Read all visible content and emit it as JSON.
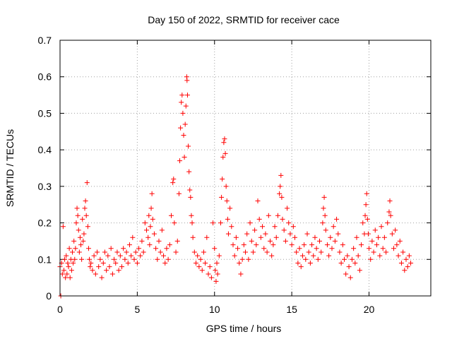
{
  "chart_data": {
    "type": "scatter",
    "title": "Day 150 of 2022, SRMTID for receiver cace",
    "xlabel": "GPS time / hours",
    "ylabel": "SRMTID / TECUs",
    "xlim": [
      0,
      24
    ],
    "ylim": [
      0,
      0.7
    ],
    "xticks": [
      0,
      5,
      10,
      15,
      20
    ],
    "yticks": [
      0,
      0.1,
      0.2,
      0.3,
      0.4,
      0.5,
      0.6,
      0.7
    ],
    "grid": true,
    "marker": "+",
    "series": [
      {
        "name": "SRMTID",
        "color": "#ff0000",
        "points": [
          [
            0.0,
            0.08
          ],
          [
            0.05,
            0.0
          ],
          [
            0.1,
            0.09
          ],
          [
            0.15,
            0.06
          ],
          [
            0.2,
            0.19
          ],
          [
            0.25,
            0.07
          ],
          [
            0.3,
            0.1
          ],
          [
            0.35,
            0.05
          ],
          [
            0.4,
            0.11
          ],
          [
            0.45,
            0.06
          ],
          [
            0.5,
            0.09
          ],
          [
            0.55,
            0.08
          ],
          [
            0.6,
            0.13
          ],
          [
            0.65,
            0.05
          ],
          [
            0.7,
            0.1
          ],
          [
            0.75,
            0.07
          ],
          [
            0.8,
            0.12
          ],
          [
            0.85,
            0.09
          ],
          [
            0.9,
            0.15
          ],
          [
            0.95,
            0.1
          ],
          [
            1.0,
            0.13
          ],
          [
            1.05,
            0.2
          ],
          [
            1.1,
            0.24
          ],
          [
            1.15,
            0.22
          ],
          [
            1.2,
            0.18
          ],
          [
            1.25,
            0.12
          ],
          [
            1.3,
            0.16
          ],
          [
            1.35,
            0.14
          ],
          [
            1.4,
            0.1
          ],
          [
            1.45,
            0.21
          ],
          [
            1.5,
            0.15
          ],
          [
            1.55,
            0.17
          ],
          [
            1.6,
            0.24
          ],
          [
            1.65,
            0.26
          ],
          [
            1.7,
            0.22
          ],
          [
            1.75,
            0.31
          ],
          [
            1.8,
            0.19
          ],
          [
            1.85,
            0.13
          ],
          [
            1.9,
            0.1
          ],
          [
            1.95,
            0.08
          ],
          [
            2.0,
            0.09
          ],
          [
            2.1,
            0.07
          ],
          [
            2.2,
            0.11
          ],
          [
            2.3,
            0.06
          ],
          [
            2.4,
            0.12
          ],
          [
            2.5,
            0.08
          ],
          [
            2.6,
            0.1
          ],
          [
            2.7,
            0.05
          ],
          [
            2.8,
            0.09
          ],
          [
            2.9,
            0.12
          ],
          [
            3.0,
            0.07
          ],
          [
            3.1,
            0.11
          ],
          [
            3.2,
            0.08
          ],
          [
            3.3,
            0.13
          ],
          [
            3.4,
            0.06
          ],
          [
            3.5,
            0.1
          ],
          [
            3.6,
            0.09
          ],
          [
            3.7,
            0.12
          ],
          [
            3.8,
            0.07
          ],
          [
            3.9,
            0.11
          ],
          [
            4.0,
            0.08
          ],
          [
            4.1,
            0.13
          ],
          [
            4.2,
            0.1
          ],
          [
            4.3,
            0.12
          ],
          [
            4.4,
            0.09
          ],
          [
            4.5,
            0.14
          ],
          [
            4.6,
            0.11
          ],
          [
            4.7,
            0.16
          ],
          [
            4.8,
            0.1
          ],
          [
            4.9,
            0.12
          ],
          [
            5.0,
            0.09
          ],
          [
            5.1,
            0.13
          ],
          [
            5.2,
            0.11
          ],
          [
            5.3,
            0.15
          ],
          [
            5.4,
            0.12
          ],
          [
            5.5,
            0.2
          ],
          [
            5.6,
            0.18
          ],
          [
            5.7,
            0.16
          ],
          [
            5.75,
            0.22
          ],
          [
            5.8,
            0.14
          ],
          [
            5.85,
            0.19
          ],
          [
            5.9,
            0.24
          ],
          [
            5.95,
            0.28
          ],
          [
            6.0,
            0.21
          ],
          [
            6.1,
            0.17
          ],
          [
            6.2,
            0.13
          ],
          [
            6.3,
            0.1
          ],
          [
            6.4,
            0.15
          ],
          [
            6.5,
            0.12
          ],
          [
            6.6,
            0.18
          ],
          [
            6.7,
            0.11
          ],
          [
            6.8,
            0.09
          ],
          [
            6.9,
            0.13
          ],
          [
            7.0,
            0.1
          ],
          [
            7.1,
            0.14
          ],
          [
            7.2,
            0.22
          ],
          [
            7.3,
            0.31
          ],
          [
            7.35,
            0.32
          ],
          [
            7.4,
            0.2
          ],
          [
            7.5,
            0.12
          ],
          [
            7.6,
            0.15
          ],
          [
            7.7,
            0.28
          ],
          [
            7.75,
            0.37
          ],
          [
            7.8,
            0.46
          ],
          [
            7.85,
            0.53
          ],
          [
            7.9,
            0.55
          ],
          [
            7.95,
            0.5
          ],
          [
            8.0,
            0.44
          ],
          [
            8.05,
            0.38
          ],
          [
            8.1,
            0.47
          ],
          [
            8.15,
            0.52
          ],
          [
            8.2,
            0.6
          ],
          [
            8.22,
            0.59
          ],
          [
            8.25,
            0.55
          ],
          [
            8.3,
            0.41
          ],
          [
            8.35,
            0.34
          ],
          [
            8.4,
            0.29
          ],
          [
            8.45,
            0.27
          ],
          [
            8.5,
            0.22
          ],
          [
            8.55,
            0.2
          ],
          [
            8.6,
            0.16
          ],
          [
            8.7,
            0.12
          ],
          [
            8.8,
            0.09
          ],
          [
            8.9,
            0.11
          ],
          [
            9.0,
            0.08
          ],
          [
            9.1,
            0.1
          ],
          [
            9.2,
            0.07
          ],
          [
            9.3,
            0.12
          ],
          [
            9.4,
            0.09
          ],
          [
            9.5,
            0.16
          ],
          [
            9.6,
            0.06
          ],
          [
            9.7,
            0.08
          ],
          [
            9.8,
            0.05
          ],
          [
            9.9,
            0.2
          ],
          [
            10.0,
            0.13
          ],
          [
            10.05,
            0.07
          ],
          [
            10.1,
            0.04
          ],
          [
            10.15,
            0.09
          ],
          [
            10.2,
            0.06
          ],
          [
            10.3,
            0.11
          ],
          [
            10.4,
            0.2
          ],
          [
            10.45,
            0.27
          ],
          [
            10.5,
            0.32
          ],
          [
            10.55,
            0.38
          ],
          [
            10.6,
            0.42
          ],
          [
            10.65,
            0.43
          ],
          [
            10.7,
            0.39
          ],
          [
            10.75,
            0.3
          ],
          [
            10.8,
            0.26
          ],
          [
            10.85,
            0.21
          ],
          [
            10.9,
            0.17
          ],
          [
            11.0,
            0.24
          ],
          [
            11.1,
            0.19
          ],
          [
            11.2,
            0.14
          ],
          [
            11.3,
            0.11
          ],
          [
            11.4,
            0.16
          ],
          [
            11.5,
            0.13
          ],
          [
            11.6,
            0.09
          ],
          [
            11.7,
            0.06
          ],
          [
            11.8,
            0.1
          ],
          [
            11.9,
            0.14
          ],
          [
            12.0,
            0.12
          ],
          [
            12.1,
            0.17
          ],
          [
            12.2,
            0.1
          ],
          [
            12.3,
            0.2
          ],
          [
            12.4,
            0.15
          ],
          [
            12.5,
            0.12
          ],
          [
            12.6,
            0.18
          ],
          [
            12.7,
            0.14
          ],
          [
            12.8,
            0.26
          ],
          [
            12.9,
            0.21
          ],
          [
            13.0,
            0.16
          ],
          [
            13.1,
            0.19
          ],
          [
            13.2,
            0.13
          ],
          [
            13.3,
            0.17
          ],
          [
            13.4,
            0.12
          ],
          [
            13.5,
            0.22
          ],
          [
            13.6,
            0.15
          ],
          [
            13.7,
            0.11
          ],
          [
            13.8,
            0.14
          ],
          [
            13.9,
            0.19
          ],
          [
            14.0,
            0.16
          ],
          [
            14.1,
            0.22
          ],
          [
            14.2,
            0.28
          ],
          [
            14.25,
            0.3
          ],
          [
            14.3,
            0.33
          ],
          [
            14.35,
            0.27
          ],
          [
            14.4,
            0.21
          ],
          [
            14.5,
            0.18
          ],
          [
            14.6,
            0.15
          ],
          [
            14.7,
            0.24
          ],
          [
            14.8,
            0.2
          ],
          [
            14.9,
            0.17
          ],
          [
            15.0,
            0.14
          ],
          [
            15.1,
            0.19
          ],
          [
            15.2,
            0.16
          ],
          [
            15.3,
            0.12
          ],
          [
            15.4,
            0.09
          ],
          [
            15.5,
            0.13
          ],
          [
            15.6,
            0.08
          ],
          [
            15.7,
            0.11
          ],
          [
            15.8,
            0.14
          ],
          [
            15.9,
            0.1
          ],
          [
            16.0,
            0.17
          ],
          [
            16.1,
            0.12
          ],
          [
            16.2,
            0.09
          ],
          [
            16.3,
            0.14
          ],
          [
            16.4,
            0.11
          ],
          [
            16.5,
            0.16
          ],
          [
            16.6,
            0.13
          ],
          [
            16.7,
            0.1
          ],
          [
            16.8,
            0.15
          ],
          [
            16.9,
            0.12
          ],
          [
            17.0,
            0.2
          ],
          [
            17.05,
            0.24
          ],
          [
            17.1,
            0.27
          ],
          [
            17.15,
            0.22
          ],
          [
            17.2,
            0.18
          ],
          [
            17.3,
            0.14
          ],
          [
            17.4,
            0.11
          ],
          [
            17.5,
            0.16
          ],
          [
            17.6,
            0.13
          ],
          [
            17.7,
            0.19
          ],
          [
            17.8,
            0.15
          ],
          [
            17.9,
            0.21
          ],
          [
            18.0,
            0.17
          ],
          [
            18.1,
            0.12
          ],
          [
            18.2,
            0.09
          ],
          [
            18.3,
            0.14
          ],
          [
            18.4,
            0.1
          ],
          [
            18.5,
            0.06
          ],
          [
            18.6,
            0.11
          ],
          [
            18.7,
            0.08
          ],
          [
            18.8,
            0.05
          ],
          [
            18.9,
            0.1
          ],
          [
            19.0,
            0.13
          ],
          [
            19.1,
            0.09
          ],
          [
            19.2,
            0.16
          ],
          [
            19.3,
            0.11
          ],
          [
            19.4,
            0.07
          ],
          [
            19.5,
            0.14
          ],
          [
            19.6,
            0.2
          ],
          [
            19.7,
            0.17
          ],
          [
            19.75,
            0.22
          ],
          [
            19.8,
            0.25
          ],
          [
            19.85,
            0.28
          ],
          [
            19.9,
            0.21
          ],
          [
            19.95,
            0.17
          ],
          [
            20.0,
            0.13
          ],
          [
            20.1,
            0.1
          ],
          [
            20.2,
            0.15
          ],
          [
            20.3,
            0.12
          ],
          [
            20.4,
            0.18
          ],
          [
            20.5,
            0.14
          ],
          [
            20.6,
            0.16
          ],
          [
            20.7,
            0.11
          ],
          [
            20.8,
            0.19
          ],
          [
            20.9,
            0.13
          ],
          [
            21.0,
            0.16
          ],
          [
            21.1,
            0.12
          ],
          [
            21.2,
            0.2
          ],
          [
            21.3,
            0.23
          ],
          [
            21.35,
            0.26
          ],
          [
            21.4,
            0.22
          ],
          [
            21.5,
            0.17
          ],
          [
            21.6,
            0.13
          ],
          [
            21.7,
            0.18
          ],
          [
            21.8,
            0.14
          ],
          [
            21.9,
            0.11
          ],
          [
            22.0,
            0.15
          ],
          [
            22.1,
            0.09
          ],
          [
            22.2,
            0.12
          ],
          [
            22.3,
            0.07
          ],
          [
            22.4,
            0.1
          ],
          [
            22.5,
            0.08
          ],
          [
            22.6,
            0.11
          ],
          [
            22.7,
            0.09
          ]
        ]
      }
    ]
  }
}
